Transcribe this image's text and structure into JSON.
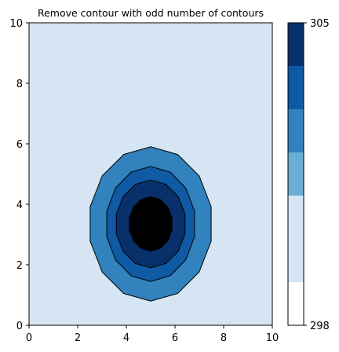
{
  "chart_data": {
    "type": "contourf",
    "title": "Remove contour with odd number of contours",
    "xlabel": "",
    "ylabel": "",
    "xlim": [
      0,
      10
    ],
    "ylim": [
      0,
      10
    ],
    "x_ticks": [
      "0",
      "2",
      "4",
      "6",
      "8",
      "10"
    ],
    "y_ticks": [
      "0",
      "2",
      "4",
      "6",
      "8",
      "10"
    ],
    "grid": false,
    "field": {
      "background_level": 1,
      "peak": {
        "x": 5.0,
        "y": 3.35
      },
      "contour_rings": [
        {
          "level_band": 3,
          "rx": 2.55,
          "ry": 2.55
        },
        {
          "level_band": 4,
          "rx": 1.85,
          "ry": 1.9
        },
        {
          "level_band": 5,
          "rx": 1.45,
          "ry": 1.45
        },
        {
          "level_band": 6,
          "rx": 0.9,
          "ry": 0.9
        }
      ]
    },
    "colorbar": {
      "min_label": "298",
      "max_label": "305",
      "band_colors": [
        "#ffffff",
        "#d6e5f4",
        "#6aaed6",
        "#3182bd",
        "#0f5aa3",
        "#08306b"
      ],
      "band_weights": [
        0.14,
        0.28,
        0.14,
        0.14,
        0.14,
        0.14
      ]
    },
    "colors": {
      "background": "#d6e5f4",
      "edge": "#000000"
    }
  }
}
